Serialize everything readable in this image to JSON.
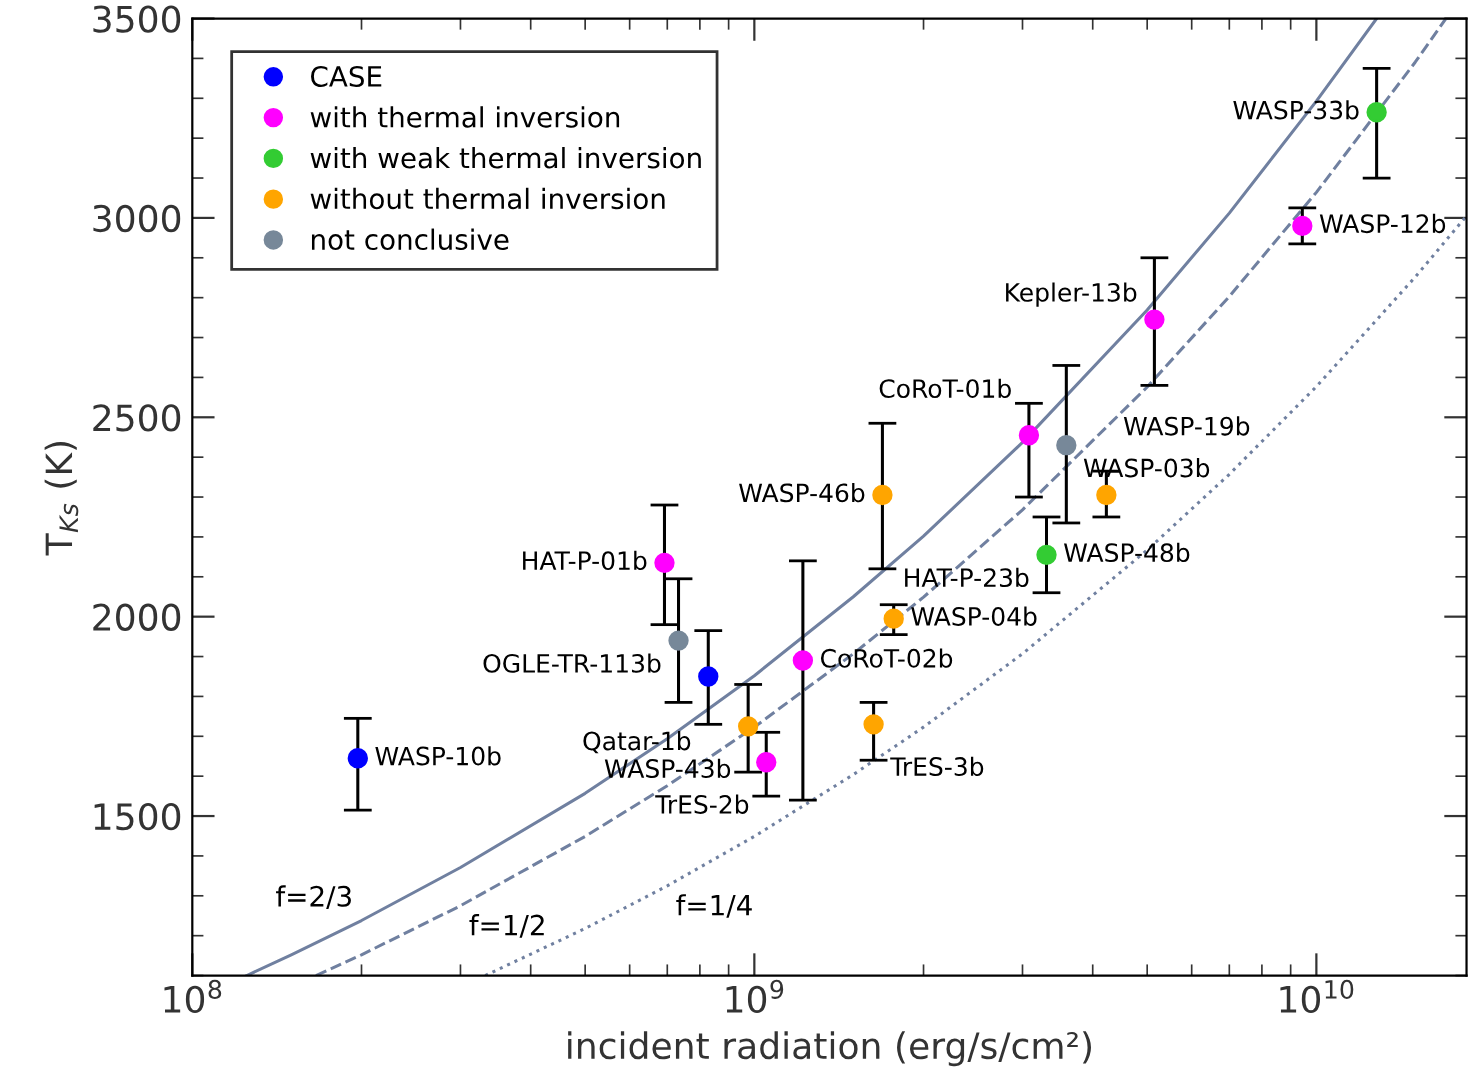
{
  "chart_data": {
    "type": "scatter",
    "xlabel": "incident radiation (erg/s/cm²)",
    "ylabel": "T$_{Ks}$ (K)",
    "log": "x",
    "xlim": [
      100000000.0,
      18500000000.0
    ],
    "xticks": [
      {
        "value": 100000000.0,
        "label": "10$^{8}$"
      },
      {
        "value": 1000000000.0,
        "label": "10$^{9}$"
      },
      {
        "value": 10000000000.0,
        "label": "10$^{10}$"
      }
    ],
    "ylim": [
      1100,
      3500
    ],
    "yticks": [
      1500,
      2000,
      2500,
      3000,
      3500
    ],
    "grid": false,
    "legend": "top left",
    "marker": "circle",
    "series": [
      {
        "name": "CASE",
        "color": "#0000ff",
        "x": [
          197000000.0,
          828000000.0
        ],
        "values": [
          1645,
          1850
        ],
        "errors": [
          [
            1515,
            1745
          ],
          [
            1730,
            1965
          ]
        ]
      },
      {
        "name": "with thermal inversion",
        "color": "#ff00ff",
        "x": [
          692000000.0,
          1050000000.0,
          1220000000.0,
          3080000000.0,
          5150000000.0,
          9440000000.0
        ],
        "values": [
          2135,
          1635,
          1890,
          2455,
          2745,
          2980
        ],
        "errors": [
          [
            1980,
            2280
          ],
          [
            1550,
            1710
          ],
          [
            1540,
            2140
          ],
          [
            2300,
            2535
          ],
          [
            2580,
            2900
          ],
          [
            2935,
            3025
          ]
        ]
      },
      {
        "name": "with weak thermal inversion",
        "color": "#33cc33",
        "x": [
          3310000000.0,
          12800000000.0
        ],
        "values": [
          2155,
          3265
        ],
        "errors": [
          [
            2060,
            2250
          ],
          [
            3100,
            3375
          ]
        ]
      },
      {
        "name": "without thermal inversion",
        "color": "#ffa500",
        "x": [
          975000000.0,
          1630000000.0,
          1770000000.0,
          1690000000.0,
          4230000000.0
        ],
        "values": [
          1725,
          1730,
          1995,
          2305,
          2305
        ],
        "errors": [
          [
            1610,
            1830
          ],
          [
            1640,
            1785
          ],
          [
            1955,
            2030
          ],
          [
            2120,
            2485
          ],
          [
            2250,
            2365
          ]
        ]
      },
      {
        "name": "not conclusive",
        "color": "#778899",
        "x": [
          733000000.0,
          3590000000.0
        ],
        "values": [
          1940,
          2430
        ],
        "errors": [
          [
            1785,
            2095
          ],
          [
            2235,
            2630
          ]
        ]
      },
      {
        "type": "line",
        "name": "f=2/3",
        "marker": "none",
        "color": "#7080a0",
        "line_style": "solid",
        "x": [
          125000000.0,
          150000000.0,
          200000000.0,
          300000000.0,
          500000000.0,
          700000000.0,
          1000000000.0,
          1500000000.0,
          2000000000.0,
          3000000000.0,
          5000000000.0,
          7000000000.0,
          10000000000.0,
          12800000000.0
        ],
        "values": [
          1100,
          1152,
          1238,
          1371,
          1557,
          1694,
          1852,
          2050,
          2202,
          2437,
          2769,
          3012,
          3293,
          3500
        ]
      },
      {
        "type": "line",
        "name": "f=1/2",
        "marker": "none",
        "color": "#7080a0",
        "line_style": "dashed",
        "x": [
          166000000.0,
          200000000.0,
          300000000.0,
          500000000.0,
          700000000.0,
          1000000000.0,
          1500000000.0,
          2000000000.0,
          3000000000.0,
          5000000000.0,
          7000000000.0,
          10000000000.0,
          15000000000.0,
          17000000000.0
        ],
        "values": [
          1100,
          1152,
          1275,
          1449,
          1576,
          1723,
          1907,
          2049,
          2268,
          2576,
          2803,
          3064,
          3391,
          3500
        ]
      },
      {
        "type": "line",
        "name": "f=1/4",
        "marker": "none",
        "color": "#7080a0",
        "line_style": "dotted",
        "x": [
          332000000.0,
          500000000.0,
          700000000.0,
          1000000000.0,
          1500000000.0,
          2000000000.0,
          3000000000.0,
          5000000000.0,
          7000000000.0,
          10000000000.0,
          15000000000.0,
          18500000000.0
        ],
        "values": [
          1100,
          1218,
          1325,
          1449,
          1604,
          1723,
          1907,
          2167,
          2357,
          2577,
          2852,
          3005
        ]
      }
    ],
    "annotations": [
      {
        "text": "WASP-10b",
        "x": 197000000.0,
        "y": 1645
      },
      {
        "text": "Qatar-1b",
        "x": 828000000.0,
        "y": 1850
      },
      {
        "text": "HAT-P-01b",
        "x": 692000000.0,
        "y": 2135
      },
      {
        "text": "TrES-2b",
        "x": 1050000000.0,
        "y": 1635
      },
      {
        "text": "CoRoT-02b",
        "x": 1220000000.0,
        "y": 1890
      },
      {
        "text": "CoRoT-01b",
        "x": 3080000000.0,
        "y": 2455
      },
      {
        "text": "Kepler-13b",
        "x": 5150000000.0,
        "y": 2745
      },
      {
        "text": "WASP-12b",
        "x": 9440000000.0,
        "y": 2980
      },
      {
        "text": "WASP-48b",
        "x": 3310000000.0,
        "y": 2155
      },
      {
        "text": "HAT-P-23b",
        "x": 3310000000.0,
        "y": 2155
      },
      {
        "text": "WASP-33b",
        "x": 12800000000.0,
        "y": 3265
      },
      {
        "text": "WASP-43b",
        "x": 975000000.0,
        "y": 1725
      },
      {
        "text": "TrES-3b",
        "x": 1630000000.0,
        "y": 1730
      },
      {
        "text": "WASP-04b",
        "x": 1770000000.0,
        "y": 1995
      },
      {
        "text": "WASP-46b",
        "x": 1690000000.0,
        "y": 2305
      },
      {
        "text": "WASP-19b",
        "x": 4230000000.0,
        "y": 2305
      },
      {
        "text": "OGLE-TR-113b",
        "x": 733000000.0,
        "y": 1940
      },
      {
        "text": "WASP-03b",
        "x": 3590000000.0,
        "y": 2430
      }
    ]
  }
}
